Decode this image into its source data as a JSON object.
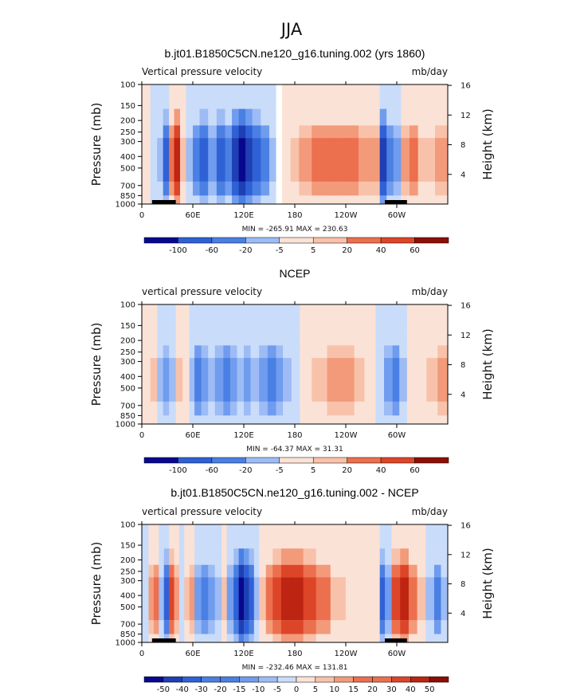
{
  "page_title": "JJA",
  "colors": {
    "neg": [
      "#08088f",
      "#1f3fb4",
      "#2f61d6",
      "#4a7fe3",
      "#6f9cee",
      "#9dbcf5",
      "#c9dcfa"
    ],
    "pos": [
      "#fbe2d6",
      "#f8c2aa",
      "#f39a7a",
      "#ec6f4e",
      "#dd4528",
      "#bd2411",
      "#8c0f06"
    ],
    "ground": "#000000",
    "frame": "#000000"
  },
  "chart_data": [
    {
      "type": "heatmap",
      "title": "b.jt01.B1850C5CN.ne120_g16.tuning.002 (yrs 1860)",
      "field_label": "Vertical pressure velocity",
      "units": "mb/day",
      "ylabel": "Pressure (mb)",
      "ylabel_right": "Height (km)",
      "x_ticks": [
        "0",
        "60E",
        "120E",
        "180",
        "120W",
        "60W"
      ],
      "x_tick_values": [
        0,
        60,
        120,
        180,
        240,
        300
      ],
      "xlim": [
        0,
        360
      ],
      "y_ticks": [
        "100",
        "150",
        "200",
        "250",
        "300",
        "400",
        "500",
        "700",
        "850",
        "1000"
      ],
      "y_tick_values": [
        100,
        150,
        200,
        250,
        300,
        400,
        500,
        700,
        850,
        1000
      ],
      "ylim": [
        100,
        1000
      ],
      "y_right_ticks": [
        "16",
        "12",
        "8",
        "4"
      ],
      "y_right_values": [
        16,
        12,
        8,
        4
      ],
      "min": -265.91,
      "max": 230.63,
      "minmax_text": "MIN = -265.91   MAX = 230.63",
      "colorbar_labels": [
        "-100",
        "-60",
        "-20",
        "-5",
        "5",
        "20",
        "40",
        "60"
      ],
      "land_segments": [
        [
          12,
          40
        ],
        [
          286,
          312
        ]
      ],
      "columns": [
        {
          "lon": 0,
          "lev": 1
        },
        {
          "lon": 10,
          "lev": -1
        },
        {
          "lon": 18,
          "lev": -2
        },
        {
          "lon": 25,
          "lev": -5
        },
        {
          "lon": 32,
          "lev": 4
        },
        {
          "lon": 38,
          "lev": 6
        },
        {
          "lon": 45,
          "lev": 2
        },
        {
          "lon": 52,
          "lev": -2
        },
        {
          "lon": 60,
          "lev": -4
        },
        {
          "lon": 68,
          "lev": -5
        },
        {
          "lon": 78,
          "lev": -3
        },
        {
          "lon": 88,
          "lev": -5
        },
        {
          "lon": 98,
          "lev": -4
        },
        {
          "lon": 106,
          "lev": -6
        },
        {
          "lon": 114,
          "lev": -7
        },
        {
          "lon": 122,
          "lev": -6
        },
        {
          "lon": 130,
          "lev": -5
        },
        {
          "lon": 140,
          "lev": -4
        },
        {
          "lon": 150,
          "lev": -2
        },
        {
          "lon": 158,
          "lev": 0
        },
        {
          "lon": 165,
          "lev": 1
        },
        {
          "lon": 175,
          "lev": 2
        },
        {
          "lon": 185,
          "lev": 3
        },
        {
          "lon": 200,
          "lev": 4
        },
        {
          "lon": 220,
          "lev": 4
        },
        {
          "lon": 240,
          "lev": 4
        },
        {
          "lon": 255,
          "lev": 3
        },
        {
          "lon": 268,
          "lev": 3
        },
        {
          "lon": 280,
          "lev": -6
        },
        {
          "lon": 288,
          "lev": -4
        },
        {
          "lon": 296,
          "lev": -3
        },
        {
          "lon": 305,
          "lev": 3
        },
        {
          "lon": 315,
          "lev": 4
        },
        {
          "lon": 325,
          "lev": 2
        },
        {
          "lon": 335,
          "lev": 2
        },
        {
          "lon": 345,
          "lev": 3
        },
        {
          "lon": 360,
          "lev": 1
        }
      ]
    },
    {
      "type": "heatmap",
      "title": "NCEP",
      "field_label": "vertical pressure velocity",
      "units": "mb/day",
      "ylabel": "Pressure (mb)",
      "ylabel_right": "Height (km)",
      "x_ticks": [
        "0",
        "60E",
        "120E",
        "180",
        "120W",
        "60W"
      ],
      "x_tick_values": [
        0,
        60,
        120,
        180,
        240,
        300
      ],
      "xlim": [
        0,
        360
      ],
      "y_ticks": [
        "100",
        "150",
        "200",
        "250",
        "300",
        "400",
        "500",
        "700",
        "850",
        "1000"
      ],
      "y_tick_values": [
        100,
        150,
        200,
        250,
        300,
        400,
        500,
        700,
        850,
        1000
      ],
      "ylim": [
        100,
        1000
      ],
      "y_right_ticks": [
        "16",
        "12",
        "8",
        "4"
      ],
      "y_right_values": [
        16,
        12,
        8,
        4
      ],
      "min": -64.37,
      "max": 31.31,
      "minmax_text": "MIN = -64.37   MAX =  31.31",
      "colorbar_labels": [
        "-100",
        "-60",
        "-20",
        "-5",
        "5",
        "20",
        "40",
        "60"
      ],
      "land_segments": [],
      "columns": [
        {
          "lon": 0,
          "lev": 1
        },
        {
          "lon": 10,
          "lev": 2
        },
        {
          "lon": 18,
          "lev": -2
        },
        {
          "lon": 25,
          "lev": -3
        },
        {
          "lon": 32,
          "lev": -2
        },
        {
          "lon": 40,
          "lev": 2
        },
        {
          "lon": 48,
          "lev": 1
        },
        {
          "lon": 56,
          "lev": -2
        },
        {
          "lon": 62,
          "lev": -4
        },
        {
          "lon": 70,
          "lev": -3
        },
        {
          "lon": 78,
          "lev": -2
        },
        {
          "lon": 86,
          "lev": -3
        },
        {
          "lon": 96,
          "lev": -4
        },
        {
          "lon": 104,
          "lev": -3
        },
        {
          "lon": 112,
          "lev": -2
        },
        {
          "lon": 120,
          "lev": -3
        },
        {
          "lon": 128,
          "lev": -2
        },
        {
          "lon": 138,
          "lev": -3
        },
        {
          "lon": 148,
          "lev": -4
        },
        {
          "lon": 158,
          "lev": -3
        },
        {
          "lon": 166,
          "lev": -2
        },
        {
          "lon": 176,
          "lev": -1
        },
        {
          "lon": 186,
          "lev": 1
        },
        {
          "lon": 200,
          "lev": 2
        },
        {
          "lon": 218,
          "lev": 3
        },
        {
          "lon": 235,
          "lev": 3
        },
        {
          "lon": 250,
          "lev": 2
        },
        {
          "lon": 262,
          "lev": 1
        },
        {
          "lon": 275,
          "lev": -1
        },
        {
          "lon": 285,
          "lev": -3
        },
        {
          "lon": 295,
          "lev": -4
        },
        {
          "lon": 303,
          "lev": -2
        },
        {
          "lon": 312,
          "lev": 1
        },
        {
          "lon": 322,
          "lev": 1
        },
        {
          "lon": 335,
          "lev": 2
        },
        {
          "lon": 348,
          "lev": 3
        },
        {
          "lon": 360,
          "lev": 2
        }
      ]
    },
    {
      "type": "heatmap",
      "title": "b.jt01.B1850C5CN.ne120_g16.tuning.002 - NCEP",
      "field_label": "vertical pressure velocity",
      "units": "mb/day",
      "ylabel": "Pressure (mb)",
      "ylabel_right": "Height (km)",
      "x_ticks": [
        "0",
        "60E",
        "120E",
        "180",
        "120W",
        "60W"
      ],
      "x_tick_values": [
        0,
        60,
        120,
        180,
        240,
        300
      ],
      "xlim": [
        0,
        360
      ],
      "y_ticks": [
        "100",
        "150",
        "200",
        "250",
        "300",
        "400",
        "500",
        "700",
        "850",
        "1000"
      ],
      "y_tick_values": [
        100,
        150,
        200,
        250,
        300,
        400,
        500,
        700,
        850,
        1000
      ],
      "ylim": [
        100,
        1000
      ],
      "y_right_ticks": [
        "16",
        "12",
        "8",
        "4"
      ],
      "y_right_values": [
        16,
        12,
        8,
        4
      ],
      "min": -232.46,
      "max": 131.81,
      "minmax_text": "MIN = -232.46   MAX = 131.81",
      "colorbar_labels": [
        "-50",
        "-40",
        "-30",
        "-20",
        "-15",
        "-10",
        "-5",
        "0",
        "5",
        "10",
        "15",
        "20",
        "30",
        "40",
        "50"
      ],
      "land_segments": [
        [
          12,
          40
        ],
        [
          286,
          312
        ]
      ],
      "columns": [
        {
          "lon": 0,
          "lev": -1
        },
        {
          "lon": 8,
          "lev": 3
        },
        {
          "lon": 14,
          "lev": 4
        },
        {
          "lon": 20,
          "lev": -2
        },
        {
          "lon": 26,
          "lev": -5
        },
        {
          "lon": 32,
          "lev": 5
        },
        {
          "lon": 38,
          "lev": 3
        },
        {
          "lon": 44,
          "lev": -1
        },
        {
          "lon": 50,
          "lev": 2
        },
        {
          "lon": 56,
          "lev": 3
        },
        {
          "lon": 62,
          "lev": -3
        },
        {
          "lon": 70,
          "lev": -4
        },
        {
          "lon": 78,
          "lev": -3
        },
        {
          "lon": 86,
          "lev": -2
        },
        {
          "lon": 94,
          "lev": 2
        },
        {
          "lon": 100,
          "lev": -3
        },
        {
          "lon": 108,
          "lev": -5
        },
        {
          "lon": 114,
          "lev": -7
        },
        {
          "lon": 120,
          "lev": -6
        },
        {
          "lon": 126,
          "lev": -5
        },
        {
          "lon": 132,
          "lev": -2
        },
        {
          "lon": 138,
          "lev": 2
        },
        {
          "lon": 146,
          "lev": 4
        },
        {
          "lon": 154,
          "lev": 5
        },
        {
          "lon": 164,
          "lev": 6
        },
        {
          "lon": 176,
          "lev": 6
        },
        {
          "lon": 190,
          "lev": 5
        },
        {
          "lon": 205,
          "lev": 4
        },
        {
          "lon": 222,
          "lev": 2
        },
        {
          "lon": 240,
          "lev": 1
        },
        {
          "lon": 258,
          "lev": 1
        },
        {
          "lon": 272,
          "lev": 1
        },
        {
          "lon": 280,
          "lev": -5
        },
        {
          "lon": 286,
          "lev": -3
        },
        {
          "lon": 294,
          "lev": 5
        },
        {
          "lon": 304,
          "lev": 6
        },
        {
          "lon": 314,
          "lev": 4
        },
        {
          "lon": 324,
          "lev": 2
        },
        {
          "lon": 334,
          "lev": -2
        },
        {
          "lon": 344,
          "lev": -4
        },
        {
          "lon": 352,
          "lev": -2
        },
        {
          "lon": 360,
          "lev": 1
        }
      ]
    }
  ]
}
